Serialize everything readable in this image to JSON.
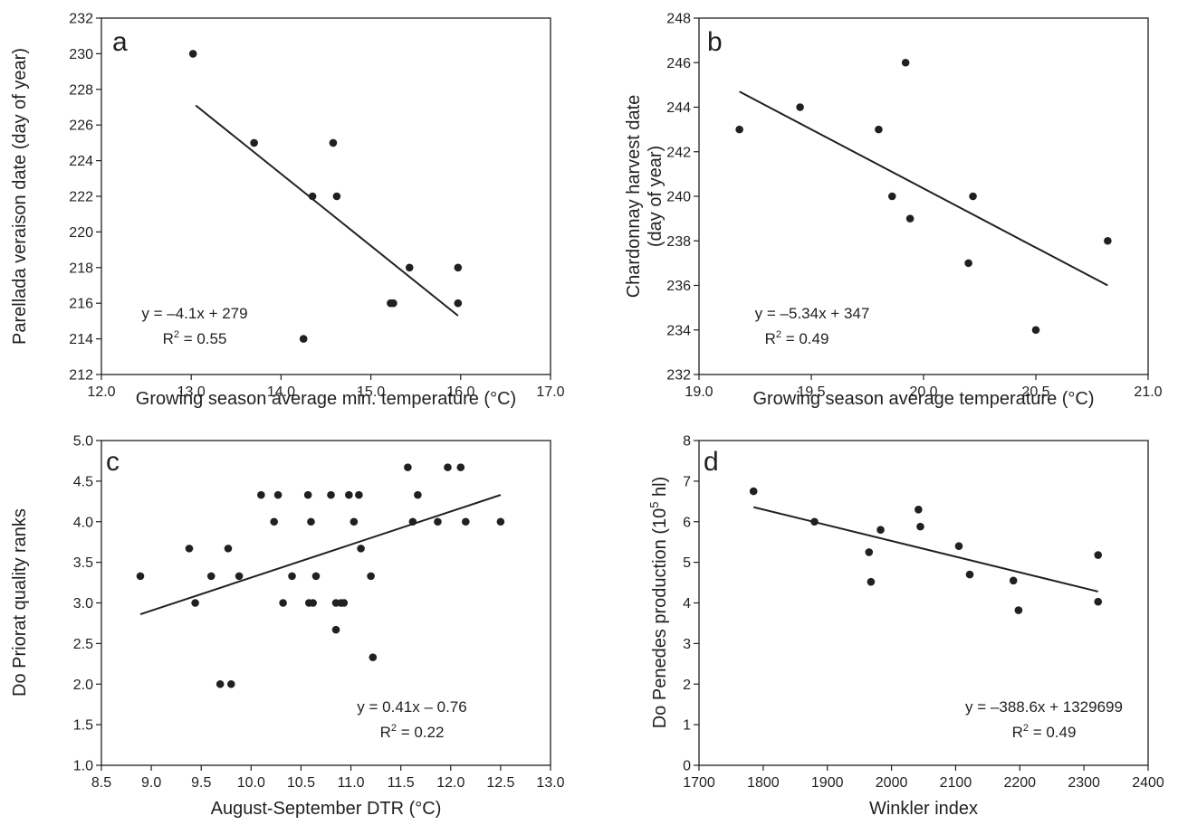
{
  "chart_data": [
    {
      "type": "scatter",
      "panel_label": "a",
      "xlabel": "Growing season average min. temperature (°C)",
      "ylabel": "Parellada veraison date (day of year)",
      "xlim": [
        12.0,
        17.0
      ],
      "ylim": [
        212,
        232
      ],
      "xticks": [
        12.0,
        13.0,
        14.0,
        15.0,
        16.0,
        17.0
      ],
      "yticks": [
        212,
        214,
        216,
        218,
        220,
        222,
        224,
        226,
        228,
        230,
        232
      ],
      "x_decimals": 1,
      "y_decimals": 0,
      "grid": false,
      "points": [
        [
          13.02,
          230
        ],
        [
          13.7,
          225
        ],
        [
          14.35,
          222
        ],
        [
          14.58,
          225
        ],
        [
          14.62,
          222
        ],
        [
          15.22,
          216
        ],
        [
          15.25,
          216
        ],
        [
          15.43,
          218
        ],
        [
          14.25,
          214
        ],
        [
          15.97,
          218
        ],
        [
          15.97,
          216
        ]
      ],
      "trendline": {
        "x": [
          13.05,
          15.97
        ],
        "y": [
          227.1,
          215.3
        ]
      },
      "equation": "y = –4.1x + 279",
      "r2_prefix": "R",
      "r2_value": " = 0.55",
      "annotation_position": "bottom-left"
    },
    {
      "type": "scatter",
      "panel_label": "b",
      "xlabel": "Growing season average temperature (°C)",
      "ylabel": [
        "Chardonnay harvest date",
        "(day of year)"
      ],
      "xlim": [
        19.0,
        21.0
      ],
      "ylim": [
        232,
        248
      ],
      "xticks": [
        19.0,
        19.5,
        20.0,
        20.5,
        21.0
      ],
      "yticks": [
        232,
        234,
        236,
        238,
        240,
        242,
        244,
        246,
        248
      ],
      "x_decimals": 1,
      "y_decimals": 0,
      "grid": false,
      "points": [
        [
          19.18,
          243
        ],
        [
          19.45,
          244
        ],
        [
          19.8,
          243
        ],
        [
          19.86,
          240
        ],
        [
          19.92,
          246
        ],
        [
          19.94,
          239
        ],
        [
          20.2,
          237
        ],
        [
          20.22,
          240
        ],
        [
          20.5,
          234
        ],
        [
          20.82,
          238
        ]
      ],
      "trendline": {
        "x": [
          19.18,
          20.82
        ],
        "y": [
          244.7,
          236.0
        ]
      },
      "equation": "y = –5.34x + 347",
      "r2_prefix": "R",
      "r2_value": " = 0.49",
      "annotation_position": "bottom-left"
    },
    {
      "type": "scatter",
      "panel_label": "c",
      "xlabel": "August-September DTR (°C)",
      "ylabel": "Do Priorat quality ranks",
      "xlim": [
        8.5,
        13.0
      ],
      "ylim": [
        1.0,
        5.0
      ],
      "xticks": [
        8.5,
        9.0,
        9.5,
        10.0,
        10.5,
        11.0,
        11.5,
        12.0,
        12.5,
        13.0
      ],
      "yticks": [
        1.0,
        1.5,
        2.0,
        2.5,
        3.0,
        3.5,
        4.0,
        4.5,
        5.0
      ],
      "x_decimals": 1,
      "y_decimals": 1,
      "grid": false,
      "points": [
        [
          8.89,
          3.33
        ],
        [
          9.38,
          3.67
        ],
        [
          9.44,
          3.0
        ],
        [
          9.6,
          3.33
        ],
        [
          9.69,
          2.0
        ],
        [
          9.77,
          3.67
        ],
        [
          9.8,
          2.0
        ],
        [
          9.88,
          3.33
        ],
        [
          10.1,
          4.33
        ],
        [
          10.23,
          4.0
        ],
        [
          10.27,
          4.33
        ],
        [
          10.32,
          3.0
        ],
        [
          10.41,
          3.33
        ],
        [
          10.57,
          4.33
        ],
        [
          10.58,
          3.0
        ],
        [
          10.6,
          4.0
        ],
        [
          10.62,
          3.0
        ],
        [
          10.65,
          3.33
        ],
        [
          10.8,
          4.33
        ],
        [
          10.85,
          2.67
        ],
        [
          10.85,
          3.0
        ],
        [
          10.9,
          3.0
        ],
        [
          10.93,
          3.0
        ],
        [
          10.98,
          4.33
        ],
        [
          11.03,
          4.0
        ],
        [
          11.08,
          4.33
        ],
        [
          11.1,
          3.67
        ],
        [
          11.2,
          3.33
        ],
        [
          11.22,
          2.33
        ],
        [
          11.57,
          4.67
        ],
        [
          11.62,
          4.0
        ],
        [
          11.67,
          4.33
        ],
        [
          11.87,
          4.0
        ],
        [
          11.97,
          4.67
        ],
        [
          12.1,
          4.67
        ],
        [
          12.15,
          4.0
        ],
        [
          12.5,
          4.0
        ]
      ],
      "trendline": {
        "x": [
          8.89,
          12.5
        ],
        "y": [
          2.86,
          4.33
        ]
      },
      "equation": "y = 0.41x – 0.76",
      "r2_prefix": "R",
      "r2_value": " = 0.22",
      "annotation_position": "bottom-right"
    },
    {
      "type": "scatter",
      "panel_label": "d",
      "xlabel": "Winkler index",
      "ylabel_prefix": "Do Penedes production (10",
      "ylabel_sup": "5",
      "ylabel_suffix": " hl)",
      "xlim": [
        1700,
        2400
      ],
      "ylim": [
        0,
        8
      ],
      "xticks": [
        1700,
        1800,
        1900,
        2000,
        2100,
        2200,
        2300,
        2400
      ],
      "yticks": [
        0,
        1,
        2,
        3,
        4,
        5,
        6,
        7,
        8
      ],
      "x_decimals": 0,
      "y_decimals": 0,
      "grid": false,
      "points": [
        [
          1785,
          6.75
        ],
        [
          1880,
          6.0
        ],
        [
          1965,
          5.25
        ],
        [
          1968,
          4.52
        ],
        [
          1983,
          5.8
        ],
        [
          2042,
          6.3
        ],
        [
          2045,
          5.88
        ],
        [
          2105,
          5.4
        ],
        [
          2122,
          4.7
        ],
        [
          2190,
          4.55
        ],
        [
          2198,
          3.82
        ],
        [
          2322,
          5.18
        ],
        [
          2322,
          4.03
        ]
      ],
      "trendline": {
        "x": [
          1785,
          2322
        ],
        "y": [
          6.36,
          4.28
        ]
      },
      "equation": "y = –388.6x + 1329699",
      "r2_prefix": "R",
      "r2_value": " = 0.49",
      "annotation_position": "bottom-right"
    }
  ]
}
